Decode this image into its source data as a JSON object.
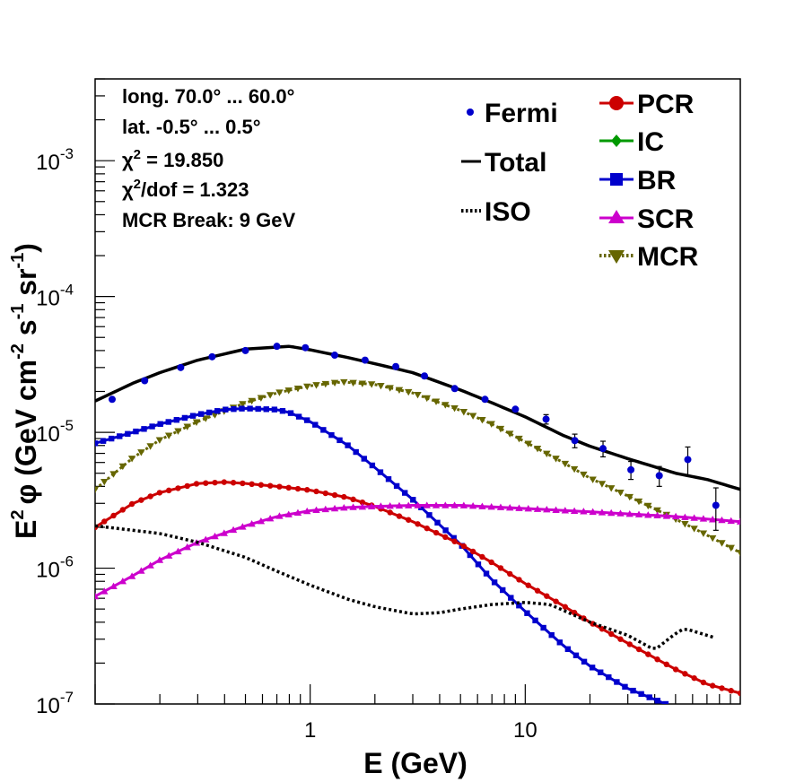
{
  "chart_data": {
    "type": "line",
    "xscale": "log",
    "yscale": "log",
    "xlim": [
      0.1,
      100
    ],
    "ylim": [
      1e-07,
      0.004
    ],
    "xlabel": "E (GeV)",
    "ylabel": {
      "base": "E",
      "sup": "2",
      "phi": "φ",
      "body": " (GeV cm",
      "sup2": "-2",
      "mid": " s",
      "sup3": "-1",
      "mid2": " sr",
      "sup4": "-1",
      "end": ")"
    },
    "x_tick_labels": [
      {
        "v": 1,
        "t": "1"
      },
      {
        "v": 10,
        "t": "10"
      }
    ],
    "y_tick_labels": [
      {
        "v": 1e-07,
        "base": "10",
        "exp": "-7"
      },
      {
        "v": 1e-06,
        "base": "10",
        "exp": "-6"
      },
      {
        "v": 1e-05,
        "base": "10",
        "exp": "-5"
      },
      {
        "v": 0.0001,
        "base": "10",
        "exp": "-4"
      },
      {
        "v": 0.001,
        "base": "10",
        "exp": "-3"
      }
    ],
    "annotations": [
      {
        "id": "long",
        "text": "long. 70.0° ... 60.0°"
      },
      {
        "id": "lat",
        "text": "lat. -0.5° ... 0.5°"
      },
      {
        "id": "chi2",
        "pre": "χ",
        "sup": "2",
        "post": " = 19.850"
      },
      {
        "id": "chi2dof",
        "pre": "χ",
        "sup": "2",
        "post": "/dof = 1.323"
      },
      {
        "id": "mcr",
        "text": "MCR Break:  9 GeV"
      }
    ],
    "legend": [
      {
        "label": "Fermi",
        "color": "#0000cc",
        "marker": "circle",
        "line": "none"
      },
      {
        "label": "Total",
        "color": "#000000",
        "marker": "none",
        "line": "solid"
      },
      {
        "label": "ISO",
        "color": "#000000",
        "marker": "none",
        "line": "dotted"
      },
      {
        "label": "PCR",
        "color": "#cc0000",
        "marker": "circle",
        "line": "solid"
      },
      {
        "label": "IC",
        "color": "#009900",
        "marker": "diamond",
        "line": "solid"
      },
      {
        "label": "BR",
        "color": "#0000cc",
        "marker": "square",
        "line": "solid"
      },
      {
        "label": "SCR",
        "color": "#cc00cc",
        "marker": "triangle-up",
        "line": "solid"
      },
      {
        "label": "MCR",
        "color": "#666600",
        "marker": "triangle-down",
        "line": "dotted"
      }
    ],
    "fermi": {
      "x": [
        0.12,
        0.17,
        0.25,
        0.35,
        0.5,
        0.7,
        0.95,
        1.3,
        1.8,
        2.5,
        3.4,
        4.7,
        6.5,
        9,
        12.5,
        17,
        23,
        31,
        42,
        57,
        77
      ],
      "y": [
        1.75e-05,
        2.4e-05,
        3e-05,
        3.6e-05,
        4e-05,
        4.3e-05,
        4.2e-05,
        3.7e-05,
        3.4e-05,
        3.05e-05,
        2.6e-05,
        2.1e-05,
        1.75e-05,
        1.48e-05,
        1.25e-05,
        8.7e-06,
        7.6e-06,
        5.3e-06,
        4.8e-06,
        6.3e-06,
        2.9e-06
      ],
      "err_lo": [
        0,
        0,
        0,
        0,
        0,
        0,
        0,
        0,
        0,
        0,
        0,
        0,
        0,
        0,
        1e-06,
        1e-06,
        1e-06,
        8e-07,
        8e-07,
        1.5e-06,
        1e-06
      ],
      "err_hi": [
        0,
        0,
        0,
        0,
        0,
        0,
        0,
        0,
        0,
        0,
        0,
        0,
        0,
        0,
        1e-06,
        1e-06,
        1e-06,
        8e-07,
        8e-07,
        1.5e-06,
        1e-06
      ]
    },
    "series": [
      {
        "name": "Total",
        "color": "#000000",
        "style": "solid",
        "width": 3.5,
        "marker": "none",
        "x": [
          0.1,
          0.15,
          0.2,
          0.3,
          0.5,
          0.8,
          1,
          1.5,
          2,
          3,
          5,
          7,
          10,
          15,
          20,
          30,
          50,
          70,
          100
        ],
        "y": [
          1.7e-05,
          2.3e-05,
          2.75e-05,
          3.4e-05,
          4.1e-05,
          4.3e-05,
          4.05e-05,
          3.55e-05,
          3.2e-05,
          2.75e-05,
          2.05e-05,
          1.65e-05,
          1.3e-05,
          9.5e-06,
          7.9e-06,
          6.4e-06,
          5e-06,
          4.5e-06,
          3.8e-06
        ]
      },
      {
        "name": "MCR",
        "color": "#666600",
        "style": "dotted",
        "width": 3,
        "marker": "triangle-down",
        "x": [
          0.1,
          0.15,
          0.2,
          0.3,
          0.5,
          0.7,
          1,
          1.4,
          2,
          3,
          5,
          7,
          10,
          15,
          20,
          30,
          50,
          70,
          100
        ],
        "y": [
          3.8e-06,
          6.5e-06,
          8.8e-06,
          1.2e-05,
          1.65e-05,
          1.95e-05,
          2.2e-05,
          2.35e-05,
          2.25e-05,
          1.95e-05,
          1.45e-05,
          1.15e-05,
          8.5e-06,
          6e-06,
          4.6e-06,
          3.4e-06,
          2.3e-06,
          1.75e-06,
          1.3e-06
        ]
      },
      {
        "name": "BR",
        "color": "#0000cc",
        "style": "solid",
        "width": 3,
        "marker": "square",
        "x": [
          0.1,
          0.15,
          0.2,
          0.3,
          0.4,
          0.5,
          0.7,
          0.8,
          1,
          1.5,
          2,
          3,
          5,
          7,
          10,
          15,
          20,
          30,
          45
        ],
        "y": [
          8.3e-06,
          1e-05,
          1.15e-05,
          1.35e-05,
          1.47e-05,
          1.5e-05,
          1.47e-05,
          1.4e-05,
          1.2e-05,
          8e-06,
          5.5e-06,
          3.2e-06,
          1.5e-06,
          8.2e-07,
          4.8e-07,
          2.7e-07,
          1.9e-07,
          1.3e-07,
          1e-07
        ]
      },
      {
        "name": "PCR",
        "color": "#cc0000",
        "style": "solid",
        "width": 3,
        "marker": "circle",
        "x": [
          0.1,
          0.15,
          0.2,
          0.3,
          0.4,
          0.5,
          0.7,
          1,
          1.5,
          2,
          3,
          5,
          7,
          10,
          15,
          20,
          30,
          50,
          70,
          100
        ],
        "y": [
          2e-06,
          3e-06,
          3.6e-06,
          4.2e-06,
          4.3e-06,
          4.2e-06,
          4e-06,
          3.75e-06,
          3.3e-06,
          2.85e-06,
          2.2e-06,
          1.5e-06,
          1.1e-06,
          7.7e-07,
          5.3e-07,
          4e-07,
          2.8e-07,
          1.8e-07,
          1.4e-07,
          1.2e-07
        ]
      },
      {
        "name": "SCR",
        "color": "#cc00cc",
        "style": "solid",
        "width": 3,
        "marker": "triangle-up",
        "x": [
          0.1,
          0.15,
          0.2,
          0.3,
          0.5,
          0.7,
          1,
          1.5,
          2,
          3,
          5,
          10,
          20,
          50,
          100
        ],
        "y": [
          6.2e-07,
          8.8e-07,
          1.15e-06,
          1.55e-06,
          2.05e-06,
          2.4e-06,
          2.65e-06,
          2.8e-06,
          2.85e-06,
          2.9e-06,
          2.9e-06,
          2.75e-06,
          2.6e-06,
          2.4e-06,
          2.2e-06
        ]
      },
      {
        "name": "ISO",
        "color": "#000000",
        "style": "dotted",
        "width": 3.5,
        "marker": "none",
        "x": [
          0.1,
          0.2,
          0.3,
          0.5,
          0.7,
          1,
          1.5,
          2,
          3,
          4,
          5,
          7,
          10,
          13,
          15,
          20,
          30,
          40,
          50,
          55,
          75
        ],
        "y": [
          2.05e-06,
          1.8e-06,
          1.55e-06,
          1.2e-06,
          9.5e-07,
          7.5e-07,
          5.9e-07,
          5.2e-07,
          4.6e-07,
          4.7e-07,
          5e-07,
          5.4e-07,
          5.6e-07,
          5.4e-07,
          4.9e-07,
          4e-07,
          3.2e-07,
          2.5e-07,
          3.3e-07,
          3.6e-07,
          3.1e-07
        ]
      }
    ]
  }
}
